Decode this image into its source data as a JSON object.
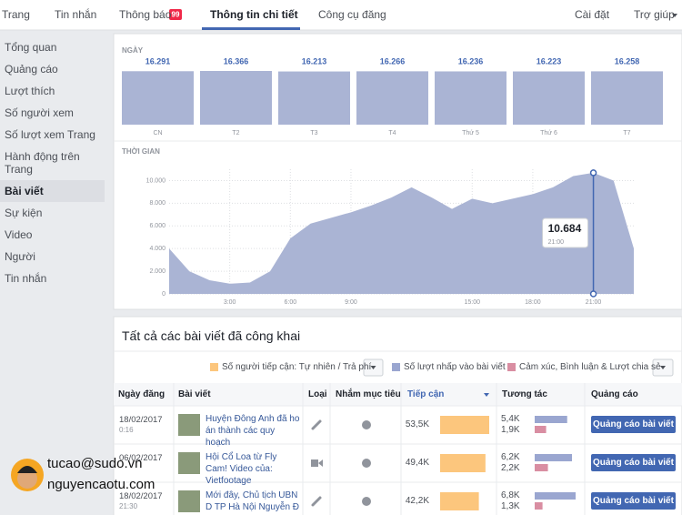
{
  "nav": {
    "tabs": [
      "Trang",
      "Tin nhắn",
      "Thông báo",
      "Thông tin chi tiết",
      "Công cụ đăng"
    ],
    "active": 3,
    "badge": "99",
    "right": [
      "Cài đặt",
      "Trợ giúp"
    ]
  },
  "sidebar": {
    "items": [
      "Tổng quan",
      "Quảng cáo",
      "Lượt thích",
      "Số người xem",
      "Số lượt xem Trang",
      "Hành động trên Trang",
      "Bài viết",
      "Sự kiện",
      "Video",
      "Người",
      "Tin nhắn"
    ],
    "active": 6
  },
  "chart_data": [
    {
      "type": "bar",
      "title": "NGÀY",
      "categories": [
        "CN",
        "T2",
        "T3",
        "T4",
        "Thứ 5",
        "Thứ 6",
        "T7"
      ],
      "values": [
        16291,
        16366,
        16213,
        16266,
        16236,
        16223,
        16258
      ],
      "value_labels": [
        "16.291",
        "16.366",
        "16.213",
        "16.266",
        "16.236",
        "16.223",
        "16.258"
      ],
      "color": "#aab4d4"
    },
    {
      "type": "area",
      "title": "THỜI GIAN",
      "x": [
        0,
        1,
        2,
        3,
        4,
        5,
        6,
        7,
        8,
        9,
        10,
        11,
        12,
        13,
        14,
        15,
        16,
        17,
        18,
        19,
        20,
        21,
        22,
        23
      ],
      "values": [
        4000,
        2000,
        1200,
        900,
        1000,
        2000,
        4900,
        6200,
        6700,
        7200,
        7800,
        8500,
        9400,
        8500,
        7500,
        8400,
        8000,
        8400,
        8800,
        9400,
        10400,
        10684,
        10000,
        4000
      ],
      "color": "#aab4d4",
      "xlim": [
        0,
        23
      ],
      "ylim": [
        0,
        11000
      ],
      "xticks": [
        {
          "value": 3,
          "label": "3:00"
        },
        {
          "value": 6,
          "label": "6:00"
        },
        {
          "value": 9,
          "label": "9:00"
        },
        {
          "value": 15,
          "label": "15:00"
        },
        {
          "value": 18,
          "label": "18:00"
        },
        {
          "value": 21,
          "label": "21:00"
        }
      ],
      "yticks": [
        0,
        {
          "value": 2000,
          "label": "2.000"
        },
        {
          "value": 4000,
          "label": "4.000"
        },
        {
          "value": 6000,
          "label": "6.000"
        },
        {
          "value": 8000,
          "label": "8.000"
        },
        {
          "value": 10000,
          "label": "10.000"
        }
      ],
      "grid": true,
      "tooltip": {
        "index": 21,
        "label": "10.684",
        "x_label": "21:00"
      }
    }
  ],
  "posts": {
    "title": "Tất cả các bài viết đã công khai",
    "legend": [
      {
        "name": "Số người tiếp cận: Tự nhiên / Trả phí",
        "color": "#fcc67d"
      },
      {
        "name": "Số lượt nhấp vào bài viết",
        "color": "#9aa6d0"
      },
      {
        "name": "Cảm xúc, Bình luận & Lượt chia sẻ",
        "color": "#d98ea2"
      }
    ],
    "columns": [
      "Ngày đăng",
      "Bài viết",
      "Loại",
      "Nhắm mục tiêu",
      "Tiếp cận",
      "Tương tác",
      "Quảng cáo"
    ],
    "button": "Quảng cáo bài viết",
    "rows": [
      {
        "date": "18/02/2017",
        "time": "0:16",
        "text": "Huyện Đông Anh đã ho án thành các quy hoạch",
        "reach": 53500,
        "reach_label": "53,5K",
        "clicks": 5400,
        "clicks_label": "5,4K",
        "reactions": 1900,
        "reactions_label": "1,9K"
      },
      {
        "date": "06/02/2017",
        "text": "Hội Cổ Loa từ Fly Cam! Video của: Vietfootage",
        "reach": 49400,
        "reach_label": "49,4K",
        "clicks": 6200,
        "clicks_label": "6,2K",
        "reactions": 2200,
        "reactions_label": "2,2K"
      },
      {
        "date": "18/02/2017",
        "time": "21:30",
        "text": "Mới đây, Chủ tịch UBN D TP Hà Nội Nguyễn Đ",
        "reach": 42200,
        "reach_label": "42,2K",
        "clicks": 6800,
        "clicks_label": "6,8K",
        "reactions": 1300,
        "reactions_label": "1,3K"
      }
    ]
  },
  "watermark": [
    "tucao@sudo.vn",
    "nguyencaotu.com"
  ]
}
